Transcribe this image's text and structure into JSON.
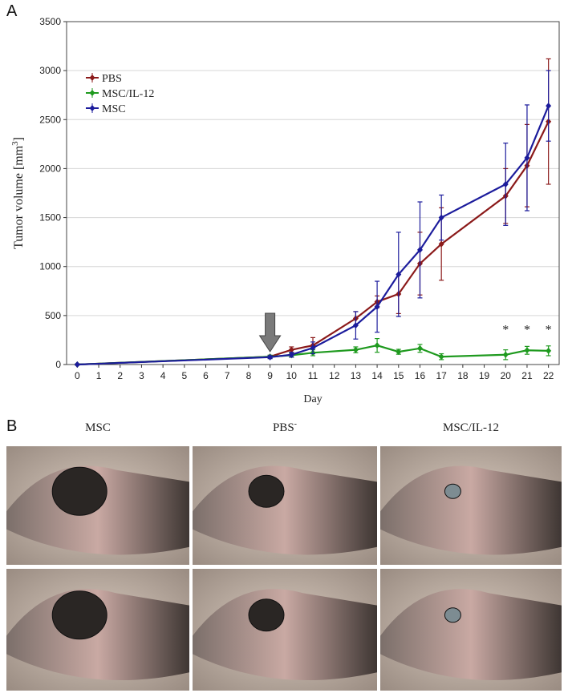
{
  "panel_a": "A",
  "panel_b": "B",
  "chart_data": {
    "type": "line",
    "xlabel": "Day",
    "ylabel": "Tumor volume [mm",
    "ylabel_sup": "3",
    "ylabel_end": "]",
    "x": [
      0,
      9,
      10,
      11,
      13,
      14,
      15,
      16,
      17,
      20,
      21,
      22
    ],
    "series": [
      {
        "name": "PBS",
        "color": "#8b1a1a",
        "values": [
          0,
          80,
          150,
          195,
          470,
          640,
          720,
          1030,
          1230,
          1720,
          2030,
          2480
        ],
        "errors": [
          5,
          15,
          30,
          80,
          70,
          60,
          200,
          320,
          370,
          280,
          420,
          640
        ]
      },
      {
        "name": "MSC/IL-12",
        "color": "#1f9a1f",
        "values": [
          0,
          80,
          95,
          120,
          150,
          195,
          130,
          165,
          80,
          100,
          145,
          140
        ],
        "errors": [
          5,
          15,
          20,
          30,
          30,
          70,
          25,
          40,
          30,
          50,
          40,
          50
        ]
      },
      {
        "name": "MSC",
        "color": "#1c1c9c",
        "values": [
          0,
          75,
          100,
          170,
          400,
          590,
          920,
          1170,
          1500,
          1840,
          2110,
          2640
        ],
        "errors": [
          5,
          15,
          25,
          60,
          140,
          260,
          430,
          490,
          230,
          420,
          540,
          360
        ]
      }
    ],
    "xlim": [
      -0.5,
      22.5
    ],
    "ylim": [
      0,
      3500
    ],
    "xticks": [
      0,
      1,
      2,
      3,
      4,
      5,
      6,
      7,
      8,
      9,
      10,
      11,
      12,
      13,
      14,
      15,
      16,
      17,
      18,
      19,
      20,
      21,
      22
    ],
    "yticks": [
      0,
      500,
      1000,
      1500,
      2000,
      2500,
      3000,
      3500
    ],
    "grid": true,
    "legend": "upper left",
    "arrow_x": 9,
    "annotations": [
      {
        "text": "*",
        "x": 20,
        "y": 380
      },
      {
        "text": "*",
        "x": 21,
        "y": 380
      },
      {
        "text": "*",
        "x": 22,
        "y": 380
      }
    ]
  },
  "photos": {
    "columns": [
      {
        "label": "MSC"
      },
      {
        "label": "PBS",
        "sup": "-"
      },
      {
        "label": "MSC/IL-12"
      }
    ]
  }
}
